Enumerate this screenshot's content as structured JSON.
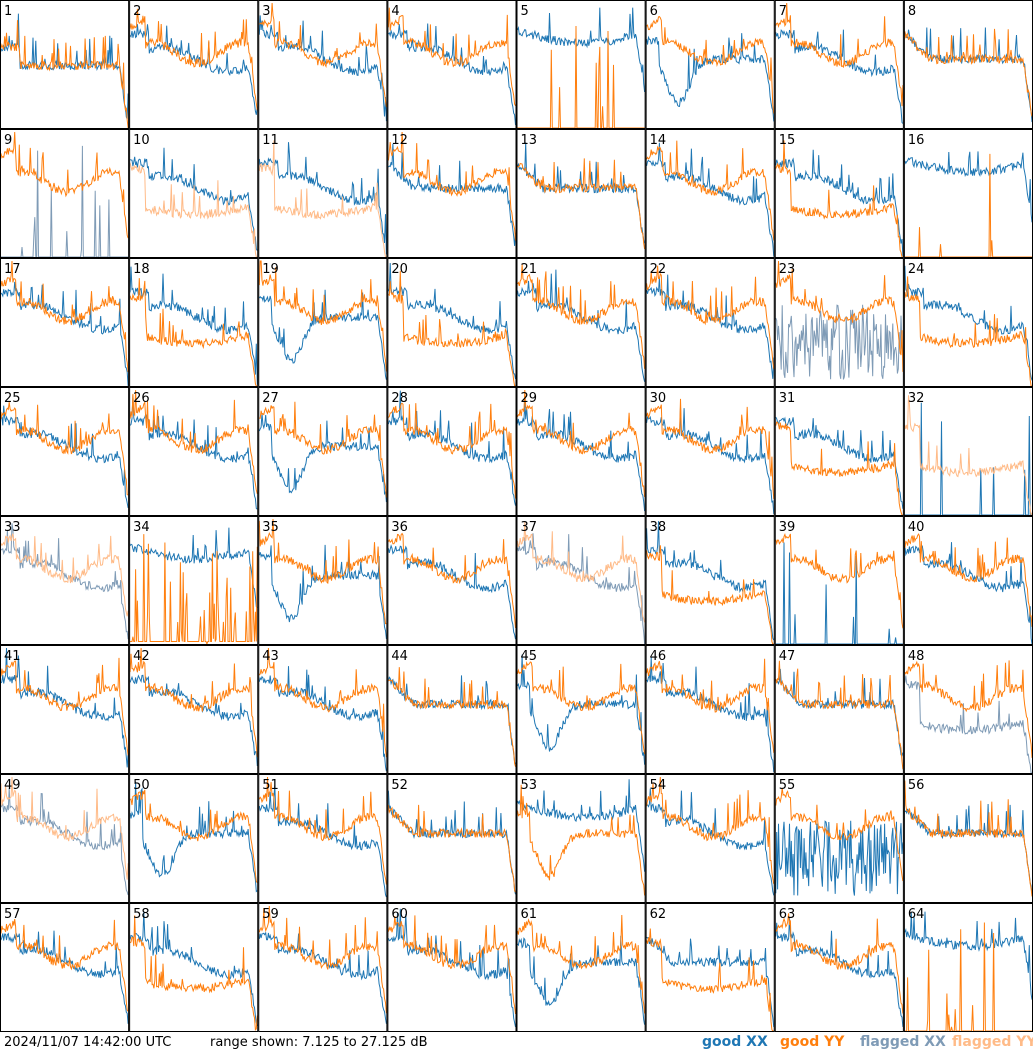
{
  "footer": {
    "timestamp": "2024/11/07 14:42:00 UTC",
    "range_text": "range shown: 7.125 to 27.125 dB"
  },
  "legend": {
    "good_xx": "good XX",
    "good_yy": "good YY",
    "flagged_xx": "flagged XX",
    "flagged_yy": "flagged YY"
  },
  "colors": {
    "good_xx": "#1f77b4",
    "good_yy": "#ff7f0e",
    "flagged_xx": "#7f9bb6",
    "flagged_yy": "#ffbb88",
    "grid": "#000000"
  },
  "chart_data": {
    "type": "line",
    "grid": "8x8",
    "ylim": [
      7.125,
      27.125
    ],
    "panels": [
      {
        "id": "1",
        "xx": "good",
        "yy": "good",
        "xx_shape": "lowdrop",
        "yy_shape": "lowdrop"
      },
      {
        "id": "2",
        "xx": "good",
        "yy": "good",
        "xx_shape": "mid",
        "yy_shape": "ripple"
      },
      {
        "id": "3",
        "xx": "good",
        "yy": "good",
        "xx_shape": "mid",
        "yy_shape": "ripple"
      },
      {
        "id": "4",
        "xx": "good",
        "yy": "good",
        "xx_shape": "mid",
        "yy_shape": "ripple"
      },
      {
        "id": "5",
        "xx": "good",
        "yy": "good",
        "xx_shape": "high",
        "yy_shape": "dead"
      },
      {
        "id": "6",
        "xx": "good",
        "yy": "good",
        "xx_shape": "dip",
        "yy_shape": "ripple"
      },
      {
        "id": "7",
        "xx": "good",
        "yy": "good",
        "xx_shape": "mid",
        "yy_shape": "ripple"
      },
      {
        "id": "8",
        "xx": "good",
        "yy": "good",
        "xx_shape": "flat",
        "yy_shape": "flat"
      },
      {
        "id": "9",
        "xx": "flagged",
        "yy": "good",
        "xx_shape": "dead",
        "yy_shape": "ripple"
      },
      {
        "id": "10",
        "xx": "good",
        "yy": "flagged",
        "xx_shape": "mid",
        "yy_shape": "low"
      },
      {
        "id": "11",
        "xx": "good",
        "yy": "flagged",
        "xx_shape": "mid",
        "yy_shape": "low"
      },
      {
        "id": "12",
        "xx": "good",
        "yy": "good",
        "xx_shape": "flat",
        "yy_shape": "ripple"
      },
      {
        "id": "13",
        "xx": "good",
        "yy": "good",
        "xx_shape": "flat",
        "yy_shape": "flat"
      },
      {
        "id": "14",
        "xx": "good",
        "yy": "good",
        "xx_shape": "mid",
        "yy_shape": "ripple"
      },
      {
        "id": "15",
        "xx": "good",
        "yy": "good",
        "xx_shape": "mid",
        "yy_shape": "low"
      },
      {
        "id": "16",
        "xx": "good",
        "yy": "good",
        "xx_shape": "high",
        "yy_shape": "dead"
      },
      {
        "id": "17",
        "xx": "good",
        "yy": "good",
        "xx_shape": "mid",
        "yy_shape": "ripple"
      },
      {
        "id": "18",
        "xx": "good",
        "yy": "good",
        "xx_shape": "mid",
        "yy_shape": "low"
      },
      {
        "id": "19",
        "xx": "good",
        "yy": "good",
        "xx_shape": "dip",
        "yy_shape": "ripple"
      },
      {
        "id": "20",
        "xx": "good",
        "yy": "good",
        "xx_shape": "mid",
        "yy_shape": "low"
      },
      {
        "id": "21",
        "xx": "good",
        "yy": "good",
        "xx_shape": "mid",
        "yy_shape": "ripple"
      },
      {
        "id": "22",
        "xx": "good",
        "yy": "good",
        "xx_shape": "mid",
        "yy_shape": "ripple"
      },
      {
        "id": "23",
        "xx": "flagged",
        "yy": "good",
        "xx_shape": "noisy",
        "yy_shape": "ripple"
      },
      {
        "id": "24",
        "xx": "good",
        "yy": "good",
        "xx_shape": "mid",
        "yy_shape": "low"
      },
      {
        "id": "25",
        "xx": "good",
        "yy": "good",
        "xx_shape": "mid",
        "yy_shape": "ripple"
      },
      {
        "id": "26",
        "xx": "good",
        "yy": "good",
        "xx_shape": "mid",
        "yy_shape": "ripple"
      },
      {
        "id": "27",
        "xx": "good",
        "yy": "good",
        "xx_shape": "dip",
        "yy_shape": "ripple"
      },
      {
        "id": "28",
        "xx": "good",
        "yy": "good",
        "xx_shape": "mid",
        "yy_shape": "ripple"
      },
      {
        "id": "29",
        "xx": "good",
        "yy": "good",
        "xx_shape": "mid",
        "yy_shape": "ripple"
      },
      {
        "id": "30",
        "xx": "good",
        "yy": "good",
        "xx_shape": "mid",
        "yy_shape": "ripple"
      },
      {
        "id": "31",
        "xx": "good",
        "yy": "good",
        "xx_shape": "mid",
        "yy_shape": "low"
      },
      {
        "id": "32",
        "xx": "good",
        "yy": "flagged",
        "xx_shape": "dead",
        "yy_shape": "low"
      },
      {
        "id": "33",
        "xx": "flagged",
        "yy": "flagged",
        "xx_shape": "mid",
        "yy_shape": "ripple"
      },
      {
        "id": "34",
        "xx": "good",
        "yy": "good",
        "xx_shape": "high",
        "yy_shape": "spikes"
      },
      {
        "id": "35",
        "xx": "good",
        "yy": "good",
        "xx_shape": "dip",
        "yy_shape": "ripple"
      },
      {
        "id": "36",
        "xx": "good",
        "yy": "good",
        "xx_shape": "mid",
        "yy_shape": "ripple"
      },
      {
        "id": "37",
        "xx": "flagged",
        "yy": "flagged",
        "xx_shape": "mid",
        "yy_shape": "ripple"
      },
      {
        "id": "38",
        "xx": "good",
        "yy": "good",
        "xx_shape": "mid",
        "yy_shape": "low"
      },
      {
        "id": "39",
        "xx": "good",
        "yy": "good",
        "xx_shape": "dead",
        "yy_shape": "ripple"
      },
      {
        "id": "40",
        "xx": "good",
        "yy": "good",
        "xx_shape": "mid",
        "yy_shape": "ripple"
      },
      {
        "id": "41",
        "xx": "good",
        "yy": "good",
        "xx_shape": "mid",
        "yy_shape": "ripple"
      },
      {
        "id": "42",
        "xx": "good",
        "yy": "good",
        "xx_shape": "mid",
        "yy_shape": "ripple"
      },
      {
        "id": "43",
        "xx": "good",
        "yy": "good",
        "xx_shape": "mid",
        "yy_shape": "ripple"
      },
      {
        "id": "44",
        "xx": "good",
        "yy": "good",
        "xx_shape": "flat",
        "yy_shape": "flat"
      },
      {
        "id": "45",
        "xx": "good",
        "yy": "good",
        "xx_shape": "dip",
        "yy_shape": "ripple"
      },
      {
        "id": "46",
        "xx": "good",
        "yy": "good",
        "xx_shape": "mid",
        "yy_shape": "ripple"
      },
      {
        "id": "47",
        "xx": "good",
        "yy": "good",
        "xx_shape": "flat",
        "yy_shape": "flat"
      },
      {
        "id": "48",
        "xx": "flagged",
        "yy": "good",
        "xx_shape": "low",
        "yy_shape": "ripple"
      },
      {
        "id": "49",
        "xx": "flagged",
        "yy": "flagged",
        "xx_shape": "mid",
        "yy_shape": "ripple"
      },
      {
        "id": "50",
        "xx": "good",
        "yy": "good",
        "xx_shape": "dip",
        "yy_shape": "ripple"
      },
      {
        "id": "51",
        "xx": "good",
        "yy": "good",
        "xx_shape": "mid",
        "yy_shape": "ripple"
      },
      {
        "id": "52",
        "xx": "good",
        "yy": "good",
        "xx_shape": "flat",
        "yy_shape": "flat"
      },
      {
        "id": "53",
        "xx": "good",
        "yy": "good",
        "xx_shape": "high",
        "yy_shape": "dip"
      },
      {
        "id": "54",
        "xx": "good",
        "yy": "good",
        "xx_shape": "mid",
        "yy_shape": "ripple"
      },
      {
        "id": "55",
        "xx": "good",
        "yy": "good",
        "xx_shape": "noisy",
        "yy_shape": "ripple"
      },
      {
        "id": "56",
        "xx": "good",
        "yy": "good",
        "xx_shape": "flat",
        "yy_shape": "flat"
      },
      {
        "id": "57",
        "xx": "good",
        "yy": "good",
        "xx_shape": "mid",
        "yy_shape": "ripple"
      },
      {
        "id": "58",
        "xx": "good",
        "yy": "good",
        "xx_shape": "mid",
        "yy_shape": "low"
      },
      {
        "id": "59",
        "xx": "good",
        "yy": "good",
        "xx_shape": "mid",
        "yy_shape": "ripple"
      },
      {
        "id": "60",
        "xx": "good",
        "yy": "good",
        "xx_shape": "mid",
        "yy_shape": "ripple"
      },
      {
        "id": "61",
        "xx": "good",
        "yy": "good",
        "xx_shape": "dip",
        "yy_shape": "ripple"
      },
      {
        "id": "62",
        "xx": "good",
        "yy": "good",
        "xx_shape": "flat",
        "yy_shape": "low"
      },
      {
        "id": "63",
        "xx": "good",
        "yy": "good",
        "xx_shape": "mid",
        "yy_shape": "ripple"
      },
      {
        "id": "64",
        "xx": "good",
        "yy": "good",
        "xx_shape": "high",
        "yy_shape": "dead"
      }
    ]
  }
}
